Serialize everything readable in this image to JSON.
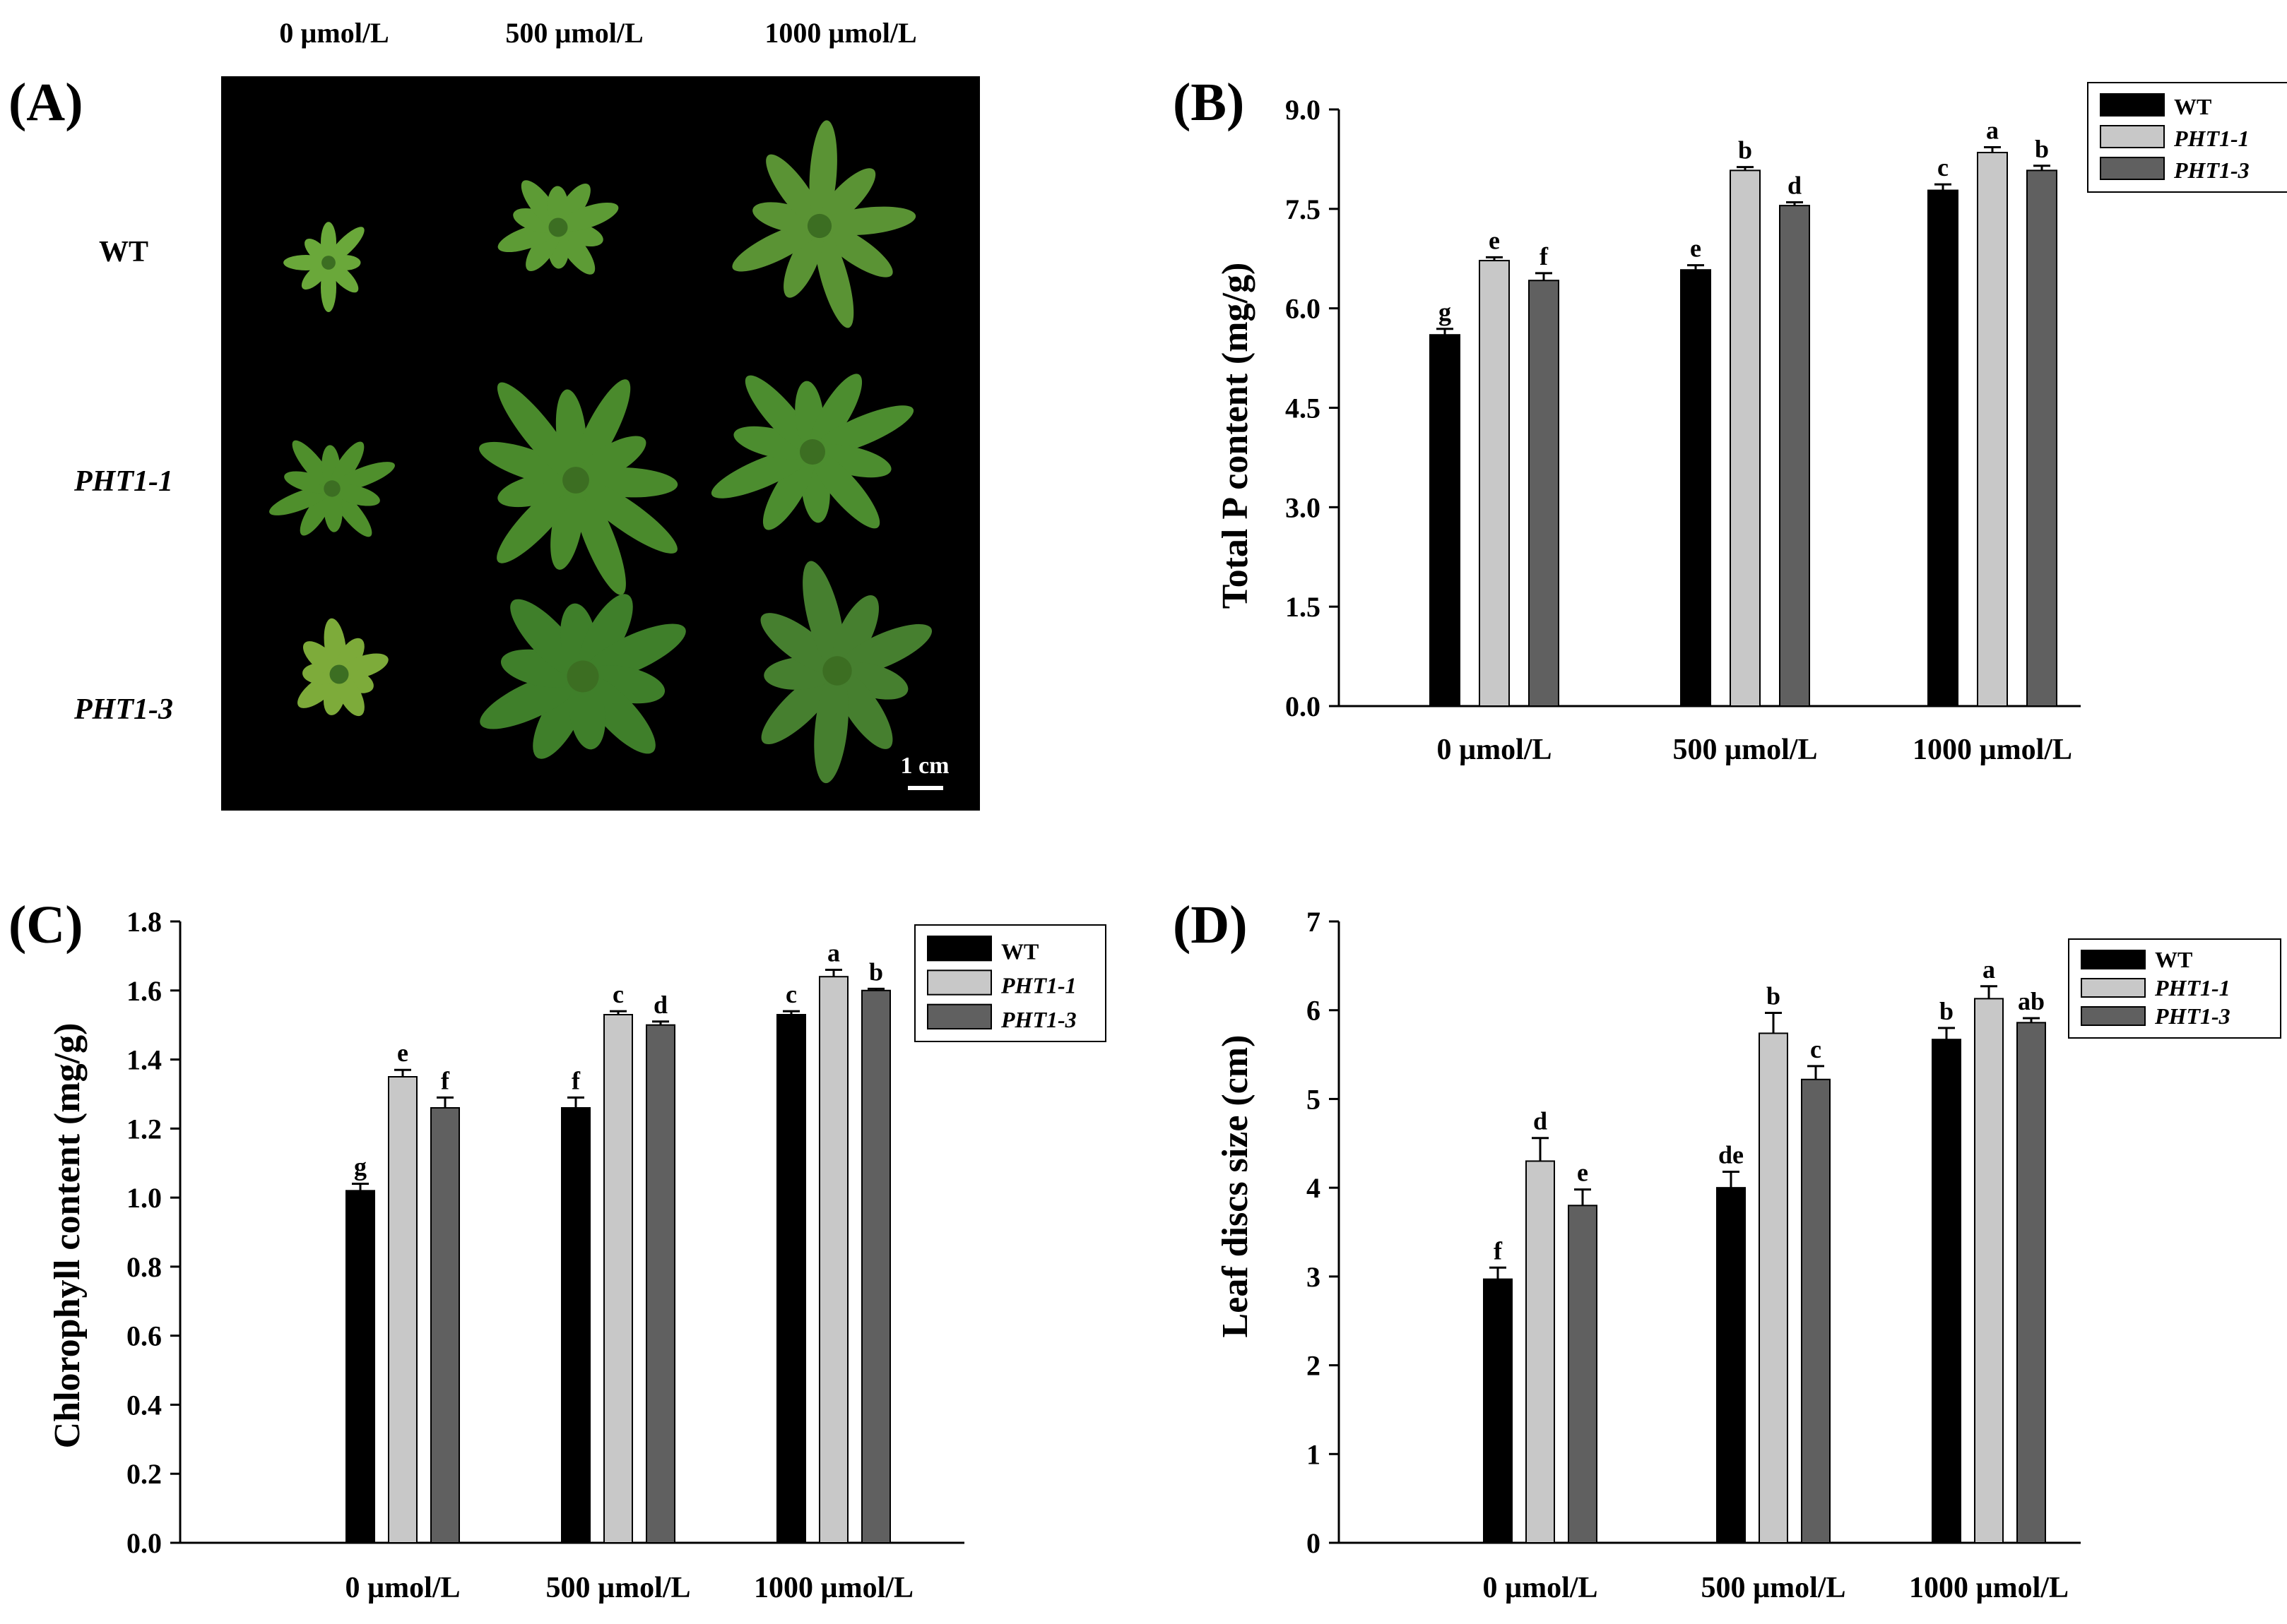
{
  "photo": {
    "label": "(A)",
    "columns": [
      "0 µmol/L",
      "500 µmol/L",
      "1000 µmol/L"
    ],
    "rows": [
      "WT",
      "PHT1-1",
      "PHT1-3"
    ],
    "scale_bar": "1 cm"
  },
  "colors": {
    "WT": "#000000",
    "PHT1-1": "#c8c8c8",
    "PHT1-3": "#606060"
  },
  "chart_data": [
    {
      "panel": "(B)",
      "type": "bar",
      "ylabel": "Total P content (mg/g)",
      "ylim": [
        0,
        9
      ],
      "yticks": [
        "0.0",
        "1.5",
        "3.0",
        "4.5",
        "6.0",
        "7.5",
        "9.0"
      ],
      "categories": [
        "0 µmol/L",
        "500 µmol/L",
        "1000 µmol/L"
      ],
      "legend": "top-right",
      "series": [
        {
          "name": "WT",
          "values": [
            5.6,
            6.58,
            7.78
          ],
          "errors": [
            0.09,
            0.07,
            0.09
          ],
          "letters": [
            "g",
            "e",
            "c"
          ]
        },
        {
          "name": "PHT1-1",
          "values": [
            6.72,
            8.08,
            8.35
          ],
          "errors": [
            0.05,
            0.05,
            0.08
          ],
          "letters": [
            "e",
            "b",
            "a"
          ]
        },
        {
          "name": "PHT1-3",
          "values": [
            6.42,
            7.55,
            8.08
          ],
          "errors": [
            0.11,
            0.05,
            0.07
          ],
          "letters": [
            "f",
            "d",
            "b"
          ]
        }
      ]
    },
    {
      "panel": "(C)",
      "type": "bar",
      "ylabel": "Chlorophyll content (mg/g)",
      "ylim": [
        0,
        1.8
      ],
      "yticks": [
        "0.0",
        "0.2",
        "0.4",
        "0.6",
        "0.8",
        "1.0",
        "1.2",
        "1.4",
        "1.6",
        "1.8"
      ],
      "categories": [
        "0 µmol/L",
        "500 µmol/L",
        "1000 µmol/L"
      ],
      "legend": "top-right",
      "series": [
        {
          "name": "WT",
          "values": [
            1.02,
            1.26,
            1.53
          ],
          "errors": [
            0.02,
            0.03,
            0.01
          ],
          "letters": [
            "g",
            "f",
            "c"
          ]
        },
        {
          "name": "PHT1-1",
          "values": [
            1.35,
            1.53,
            1.64
          ],
          "errors": [
            0.02,
            0.01,
            0.02
          ],
          "letters": [
            "e",
            "c",
            "a"
          ]
        },
        {
          "name": "PHT1-3",
          "values": [
            1.26,
            1.5,
            1.6
          ],
          "errors": [
            0.03,
            0.01,
            0.005
          ],
          "letters": [
            "f",
            "d",
            "b"
          ]
        }
      ]
    },
    {
      "panel": "(D)",
      "type": "bar",
      "ylabel": "Leaf discs size (cm)",
      "ylim": [
        0,
        7
      ],
      "yticks": [
        "0",
        "1",
        "2",
        "3",
        "4",
        "5",
        "6",
        "7"
      ],
      "categories": [
        "0 µmol/L",
        "500 µmol/L",
        "1000 µmol/L"
      ],
      "legend": "top-right",
      "series": [
        {
          "name": "WT",
          "values": [
            2.97,
            4.0,
            5.67
          ],
          "errors": [
            0.13,
            0.18,
            0.13
          ],
          "letters": [
            "f",
            "de",
            "b"
          ]
        },
        {
          "name": "PHT1-1",
          "values": [
            4.3,
            5.74,
            6.13
          ],
          "errors": [
            0.26,
            0.23,
            0.14
          ],
          "letters": [
            "d",
            "b",
            "a"
          ]
        },
        {
          "name": "PHT1-3",
          "values": [
            3.8,
            5.22,
            5.86
          ],
          "errors": [
            0.18,
            0.15,
            0.05
          ],
          "letters": [
            "e",
            "c",
            "ab"
          ]
        }
      ]
    }
  ]
}
